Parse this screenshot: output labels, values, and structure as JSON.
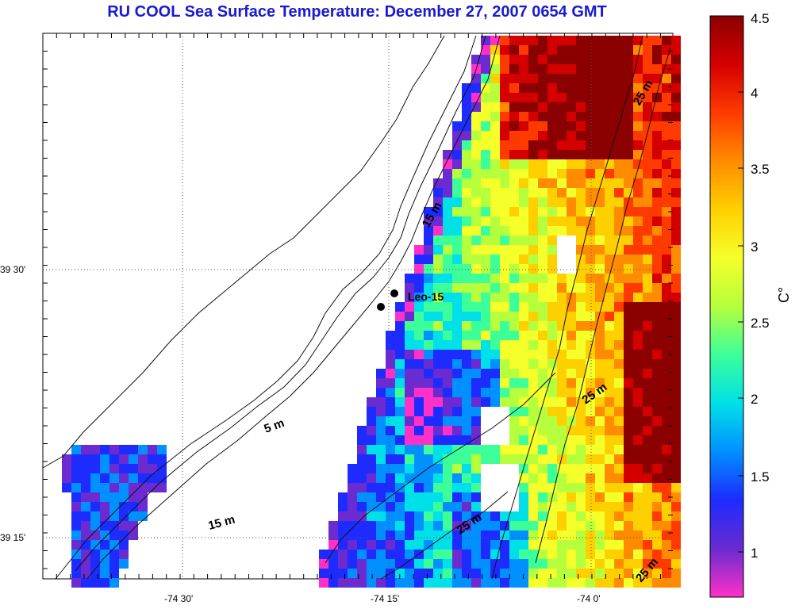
{
  "title": "RU COOL  Sea Surface Temperature:  December 27, 2007 0654 GMT",
  "y_labels": [
    "39 30'",
    "39 15'"
  ],
  "x_labels": [
    "-74 30'",
    "-74 15'",
    "-74 0'"
  ],
  "colorbar": {
    "ticks": [
      "4.5",
      "4",
      "3.5",
      "3",
      "2.5",
      "2",
      "1.5",
      "1"
    ],
    "unit": "C°",
    "stops": [
      "#8b0000",
      "#d40000",
      "#ff3a00",
      "#ff8c00",
      "#ffd000",
      "#f5ff2a",
      "#b6ff3c",
      "#3cff9a",
      "#00e0e8",
      "#0090ff",
      "#1e2bff",
      "#6a2bd0",
      "#ff30c8"
    ]
  },
  "annotations": {
    "station": "Leo-15",
    "depth_5": "5 m",
    "depth_15a": "15 m",
    "depth_15b": "15 m",
    "depth_25a": "25 m",
    "depth_25b": "25 m",
    "depth_25c": "25 m",
    "depth_25d": "25 m",
    "depth_25e": "25 m"
  }
}
